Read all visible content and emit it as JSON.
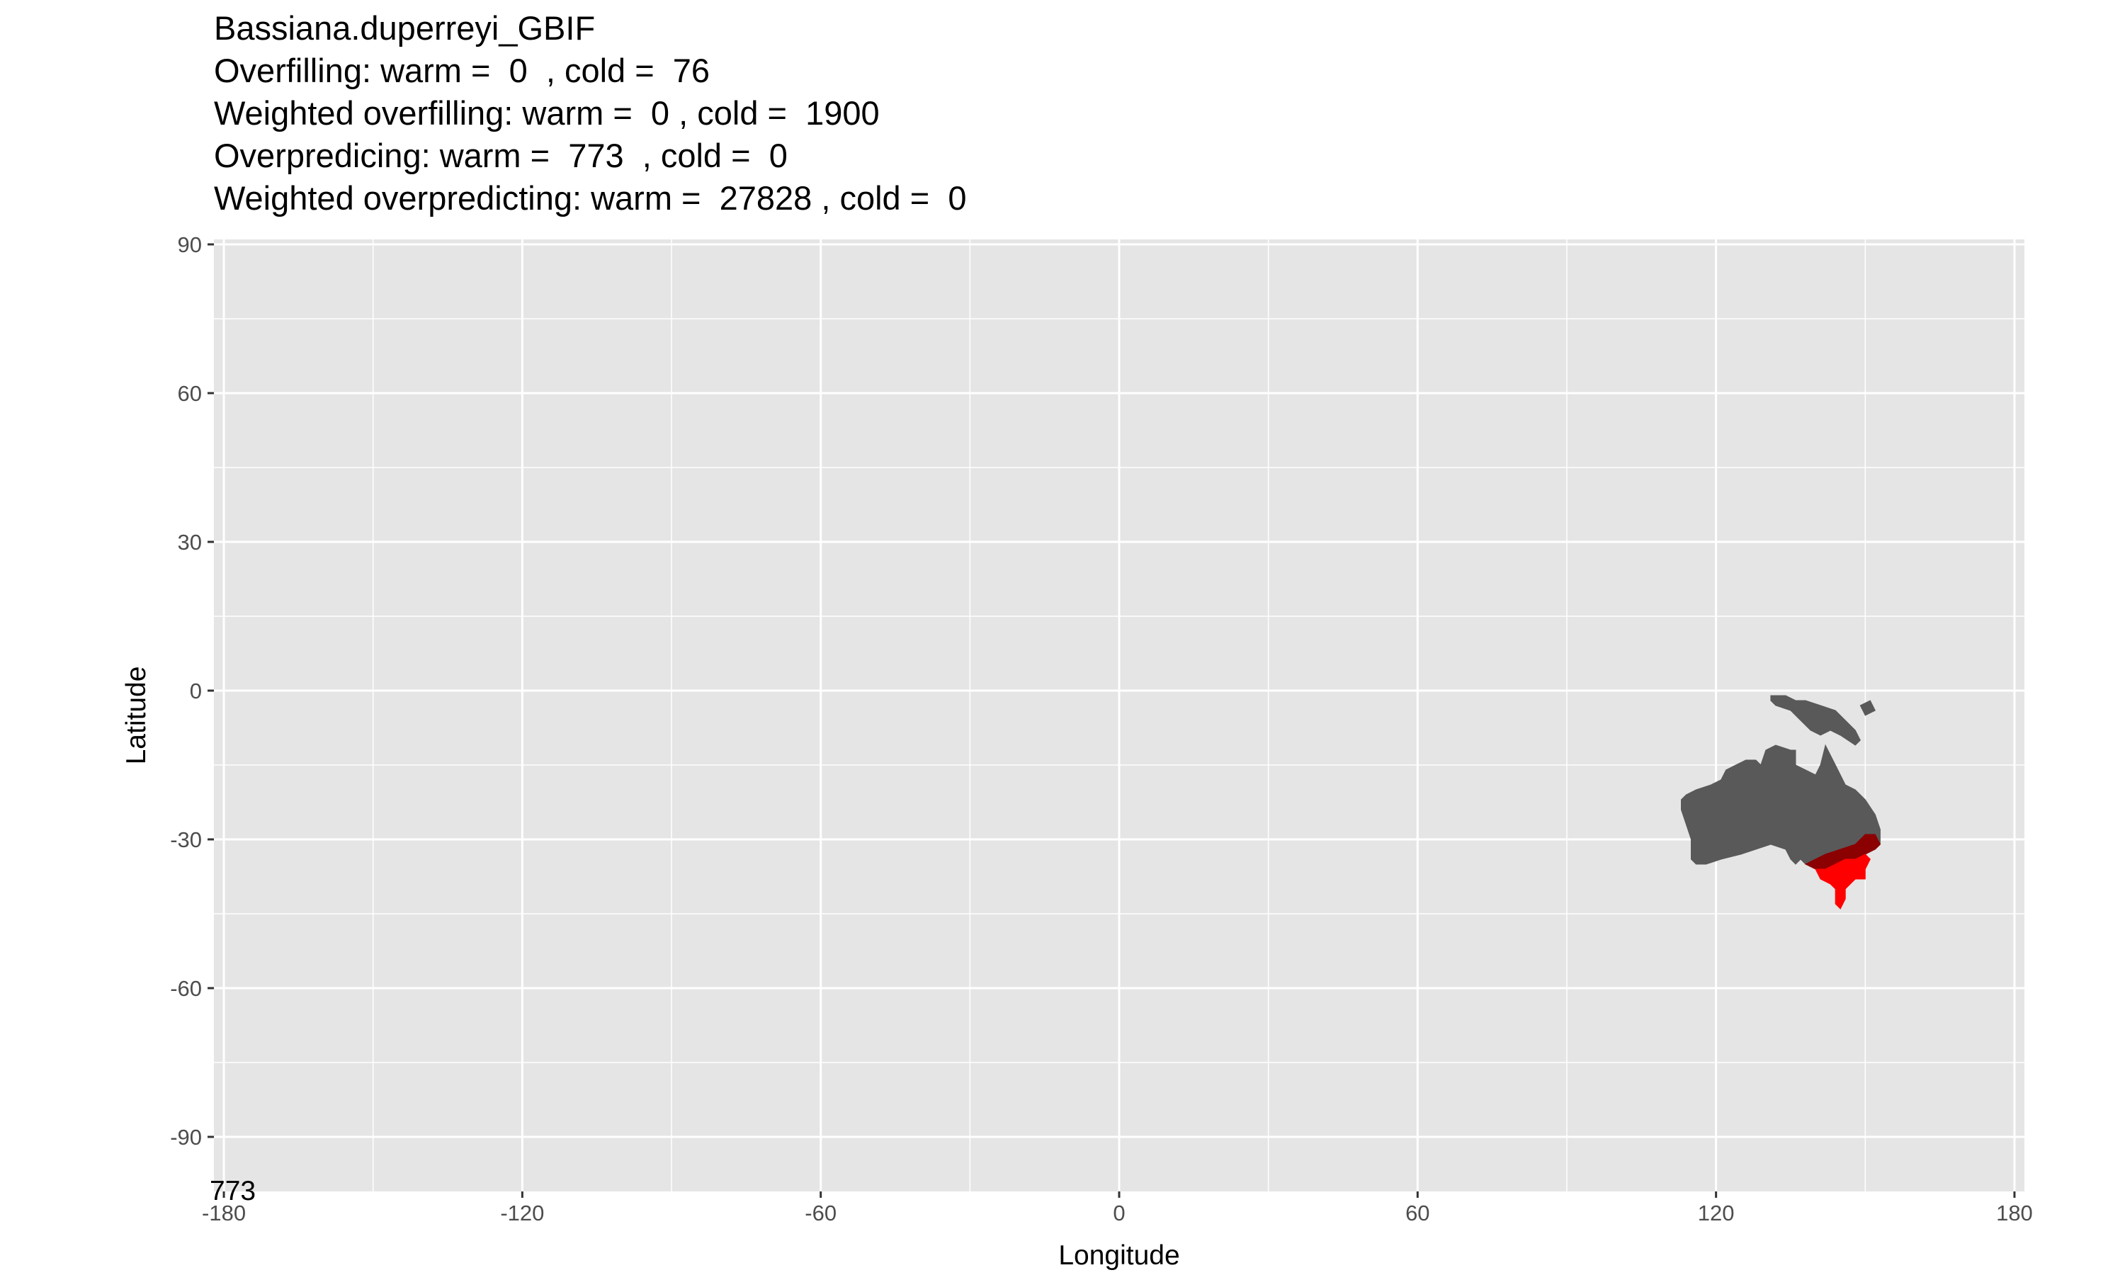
{
  "title_lines": [
    "Bassiana.duperreyi_GBIF",
    "Overfilling: warm =  0  , cold =  76",
    "Weighted overfilling: warm =  0 , cold =  1900",
    "Overpredicing: warm =  773  , cold =  0",
    "Weighted overpredicting: warm =  27828 , cold =  0"
  ],
  "x_axis": {
    "title": "Longitude",
    "limits": [
      -182,
      182
    ],
    "ticks": [
      -180,
      -120,
      -60,
      0,
      60,
      120,
      180
    ],
    "tick_labels": [
      "-180",
      "-120",
      "-60",
      "0",
      "60",
      "120",
      "180"
    ]
  },
  "y_axis": {
    "title": "Latitude",
    "limits": [
      -101,
      91
    ],
    "ticks": [
      90,
      60,
      30,
      0,
      -30,
      -60,
      -90
    ],
    "tick_labels": [
      "90",
      "60",
      "30",
      "0",
      "-30",
      "-60",
      "-90"
    ]
  },
  "corner_text": "773",
  "colors": {
    "panel": "#e5e5e5",
    "grid": "#ffffff",
    "land": "#595959",
    "overlap": "#8b0000",
    "occurrence": "#ff0000"
  },
  "chart_data": {
    "type": "map",
    "grid": true,
    "legend": "none",
    "layers": [
      {
        "name": "",
        "color": "#595959",
        "polygons": [
          [
            [
              113,
              -22
            ],
            [
              114,
              -21
            ],
            [
              116,
              -20
            ],
            [
              119,
              -19
            ],
            [
              121,
              -18
            ],
            [
              122,
              -16
            ],
            [
              124,
              -15
            ],
            [
              126,
              -14
            ],
            [
              128,
              -14
            ],
            [
              129,
              -15
            ],
            [
              130,
              -12
            ],
            [
              132,
              -11
            ],
            [
              135,
              -12
            ],
            [
              136,
              -12
            ],
            [
              136,
              -15
            ],
            [
              138,
              -16
            ],
            [
              140,
              -17
            ],
            [
              141,
              -15
            ],
            [
              142,
              -11
            ],
            [
              143,
              -13
            ],
            [
              144,
              -15
            ],
            [
              145,
              -17
            ],
            [
              146,
              -19
            ],
            [
              148,
              -20
            ],
            [
              150,
              -22
            ],
            [
              152,
              -25
            ],
            [
              153,
              -28
            ],
            [
              153,
              -31
            ],
            [
              152,
              -32
            ],
            [
              145,
              -32
            ],
            [
              142,
              -33
            ],
            [
              140,
              -34
            ],
            [
              138,
              -35
            ],
            [
              137,
              -34
            ],
            [
              136,
              -35
            ],
            [
              135,
              -34
            ],
            [
              134,
              -32
            ],
            [
              131,
              -31
            ],
            [
              128,
              -32
            ],
            [
              125,
              -33
            ],
            [
              121,
              -34
            ],
            [
              118,
              -35
            ],
            [
              116,
              -35
            ],
            [
              115,
              -34
            ],
            [
              115,
              -32
            ],
            [
              115,
              -30
            ],
            [
              114,
              -27
            ],
            [
              113,
              -24
            ]
          ],
          [
            [
              131,
              -1
            ],
            [
              134,
              -1
            ],
            [
              136,
              -2
            ],
            [
              138,
              -2
            ],
            [
              141,
              -3
            ],
            [
              144,
              -4
            ],
            [
              146,
              -6
            ],
            [
              148,
              -8
            ],
            [
              149,
              -10
            ],
            [
              148,
              -11
            ],
            [
              145,
              -9
            ],
            [
              143,
              -8
            ],
            [
              141,
              -9
            ],
            [
              139,
              -8
            ],
            [
              137,
              -6
            ],
            [
              135,
              -4
            ],
            [
              132,
              -3
            ],
            [
              131,
              -2
            ]
          ],
          [
            [
              149,
              -3
            ],
            [
              151,
              -2
            ],
            [
              152,
              -4
            ],
            [
              150,
              -5
            ]
          ]
        ]
      },
      {
        "name": "",
        "color": "#8b0000",
        "polygons": [
          [
            [
              138,
              -35
            ],
            [
              140,
              -34
            ],
            [
              142,
              -33
            ],
            [
              145,
              -32
            ],
            [
              148,
              -31
            ],
            [
              150,
              -29
            ],
            [
              152,
              -29
            ],
            [
              153,
              -31
            ],
            [
              152,
              -32
            ],
            [
              150,
              -33
            ],
            [
              148,
              -34
            ],
            [
              146,
              -34
            ],
            [
              144,
              -35
            ],
            [
              142,
              -36
            ],
            [
              140,
              -36
            ]
          ]
        ]
      },
      {
        "name": "",
        "color": "#ff0000",
        "polygons": [
          [
            [
              140,
              -36
            ],
            [
              142,
              -36
            ],
            [
              144,
              -35
            ],
            [
              146,
              -34
            ],
            [
              148,
              -34
            ],
            [
              150,
              -33
            ],
            [
              151,
              -34
            ],
            [
              150,
              -36
            ],
            [
              150,
              -38
            ],
            [
              148,
              -38
            ],
            [
              147,
              -39
            ],
            [
              146,
              -40
            ],
            [
              146,
              -42
            ],
            [
              145,
              -44
            ],
            [
              144,
              -43
            ],
            [
              144,
              -40
            ],
            [
              143,
              -39
            ],
            [
              141,
              -38
            ]
          ]
        ]
      }
    ]
  }
}
